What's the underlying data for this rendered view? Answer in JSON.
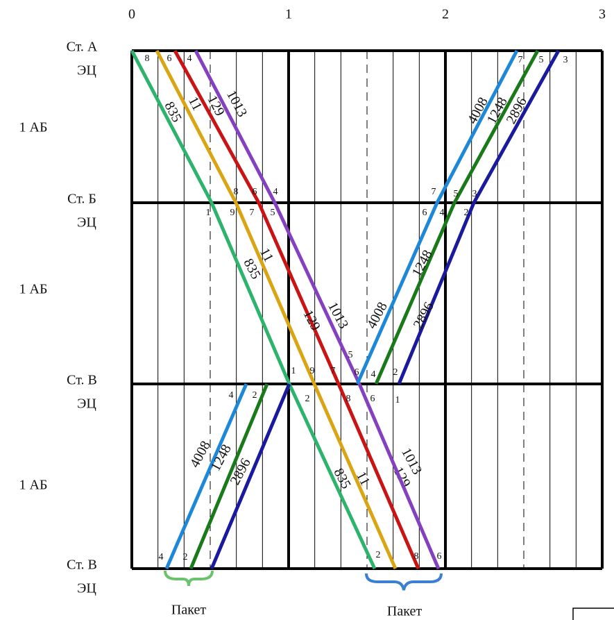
{
  "axis": {
    "labels": [
      "0",
      "1",
      "2",
      "3"
    ]
  },
  "stations": [
    {
      "name": "Ст. А",
      "sub": "ЭЦ"
    },
    {
      "name": "Ст. Б",
      "sub": "ЭЦ"
    },
    {
      "name": "Ст. В",
      "sub": "ЭЦ"
    },
    {
      "name": "Ст. В",
      "sub": "ЭЦ"
    }
  ],
  "sections": [
    "1 АБ",
    "1 АБ",
    "1 АБ"
  ],
  "trains": [
    {
      "number": "835",
      "color": "#2db36b"
    },
    {
      "number": "11",
      "color": "#d9a514"
    },
    {
      "number": "129",
      "color": "#c81414"
    },
    {
      "number": "1013",
      "color": "#8440c0"
    },
    {
      "number": "4008",
      "color": "#1e88d8"
    },
    {
      "number": "1248",
      "color": "#1a7a1a"
    },
    {
      "number": "2896",
      "color": "#1a1a9e"
    }
  ],
  "marks": [
    "8",
    "6",
    "4",
    "7",
    "5",
    "3",
    "8",
    "6",
    "4",
    "9",
    "7",
    "5",
    "1",
    "7",
    "5",
    "3",
    "6",
    "4",
    "2",
    "5",
    "1",
    "9",
    "7",
    "6",
    "4",
    "2",
    "4",
    "2",
    "2",
    "8",
    "6",
    "1",
    "4",
    "2",
    "2",
    "8",
    "6"
  ],
  "packets": [
    "Пакет",
    "Пакет"
  ]
}
